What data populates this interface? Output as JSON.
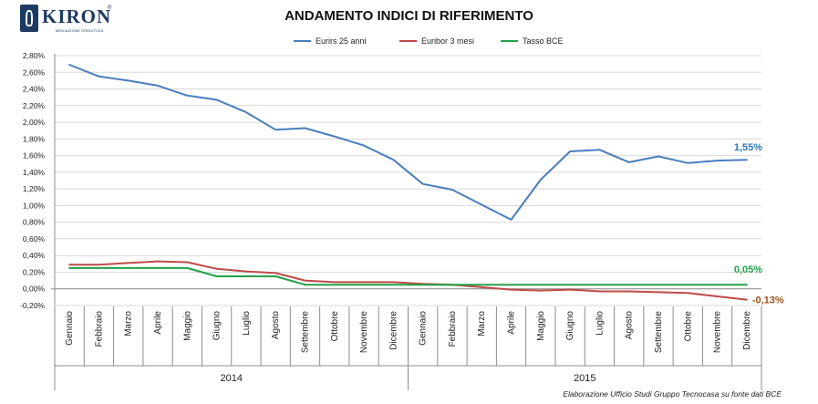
{
  "logo": {
    "brand": "KIRON",
    "registered": "®",
    "tagline": "MEDIAZIONE CREDITIZIA"
  },
  "source_note": "Elaborazione Ufficio Studi Gruppo Tecnocasa su fonte dati BCE",
  "chart_data": {
    "type": "line",
    "title": "ANDAMENTO INDICI DI RIFERIMENTO",
    "xlabel": "",
    "ylabel": "",
    "categories": [
      "Gennaio",
      "Febbraio",
      "Marzo",
      "Aprile",
      "Maggio",
      "Giugno",
      "Luglio",
      "Agosto",
      "Settembre",
      "Ottobre",
      "Novembre",
      "Dicembre",
      "Gennaio",
      "Febbraio",
      "Marzo",
      "Aprile",
      "Maggio",
      "Giugno",
      "Luglio",
      "Agosto",
      "Settembre",
      "Ottobre",
      "Novembre",
      "Dicembre"
    ],
    "year_groups": [
      {
        "label": "2014",
        "start": 0,
        "count": 12
      },
      {
        "label": "2015",
        "start": 12,
        "count": 12
      }
    ],
    "ylim": [
      -0.2,
      2.8
    ],
    "yticks": [
      -0.2,
      0,
      0.2,
      0.4,
      0.6,
      0.8,
      1.0,
      1.2,
      1.4,
      1.6,
      1.8,
      2.0,
      2.2,
      2.4,
      2.6,
      2.8
    ],
    "ytick_labels": [
      "-0,20%",
      "0,00%",
      "0,20%",
      "0,40%",
      "0,60%",
      "0,80%",
      "1,00%",
      "1,20%",
      "1,40%",
      "1,60%",
      "1,80%",
      "2,00%",
      "2,20%",
      "2,40%",
      "2,60%",
      "2,80%"
    ],
    "legend_position": "top-center",
    "grid": "horizontal",
    "series": [
      {
        "name": "Eurirs 25 anni",
        "color": "#4a7ebb",
        "values": [
          2.69,
          2.55,
          2.5,
          2.44,
          2.32,
          2.27,
          2.12,
          1.91,
          1.93,
          1.83,
          1.72,
          1.55,
          1.26,
          1.19,
          1.01,
          0.83,
          1.31,
          1.65,
          1.67,
          1.52,
          1.59,
          1.51,
          1.54,
          1.55
        ],
        "end_label": "1,55%",
        "end_label_color": "#2e75b6"
      },
      {
        "name": "Euribor 3 mesi",
        "color": "#be4b48",
        "values": [
          0.29,
          0.29,
          0.31,
          0.33,
          0.32,
          0.24,
          0.21,
          0.19,
          0.1,
          0.08,
          0.08,
          0.08,
          0.06,
          0.05,
          0.02,
          -0.01,
          -0.02,
          -0.01,
          -0.03,
          -0.03,
          -0.04,
          -0.05,
          -0.09,
          -0.13
        ],
        "end_label": "-0,13%",
        "end_label_color": "#a0521b"
      },
      {
        "name": "Tasso BCE",
        "color": "#23a04a",
        "values": [
          0.25,
          0.25,
          0.25,
          0.25,
          0.25,
          0.15,
          0.15,
          0.15,
          0.05,
          0.05,
          0.05,
          0.05,
          0.05,
          0.05,
          0.05,
          0.05,
          0.05,
          0.05,
          0.05,
          0.05,
          0.05,
          0.05,
          0.05,
          0.05
        ],
        "end_label": "0,05%",
        "end_label_color": "#23a04a"
      }
    ]
  }
}
